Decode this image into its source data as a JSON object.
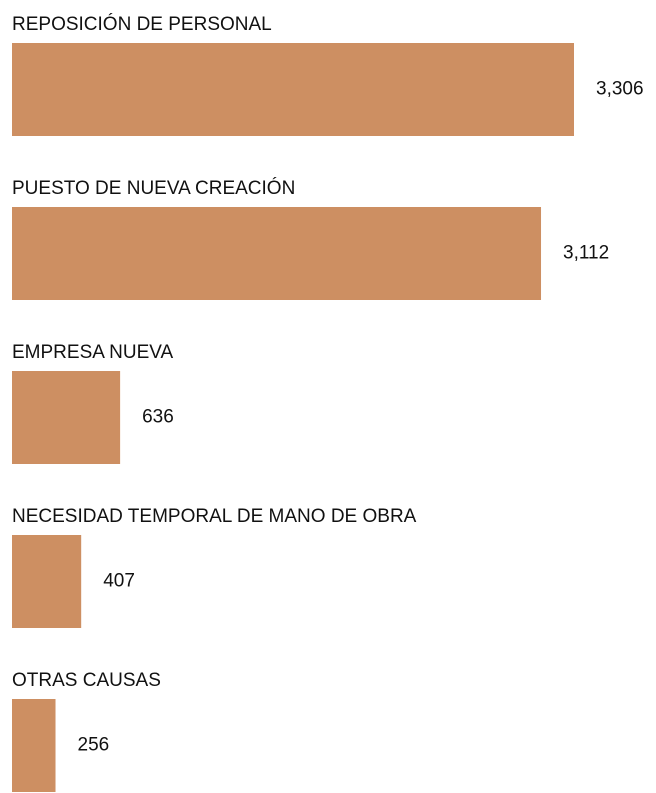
{
  "chart_data": {
    "type": "bar",
    "orientation": "horizontal",
    "categories": [
      "REPOSICIÓN DE PERSONAL",
      "PUESTO DE NUEVA CREACIÓN",
      "EMPRESA NUEVA",
      "NECESIDAD TEMPORAL DE MANO DE OBRA",
      "OTRAS CAUSAS"
    ],
    "values": [
      3306,
      3112,
      636,
      407,
      256
    ],
    "value_labels": [
      "3,306",
      "3,112",
      "636",
      "407",
      "256"
    ],
    "color": "#cd8f62"
  }
}
